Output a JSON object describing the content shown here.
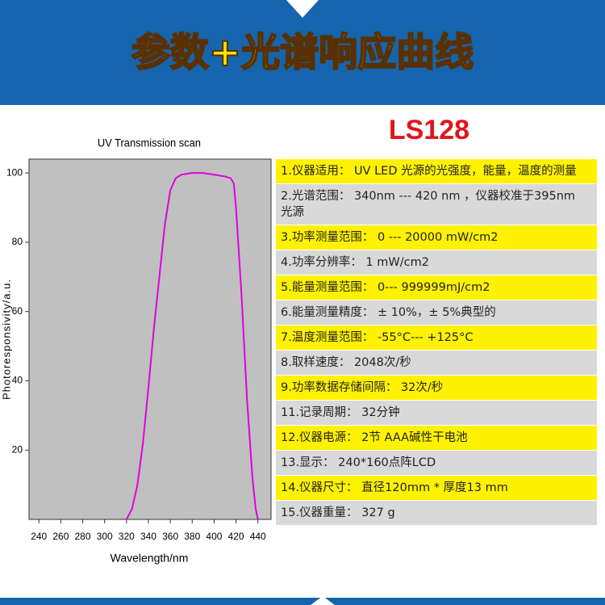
{
  "header": {
    "title": "参数+光谱响应曲线"
  },
  "model": "LS128",
  "chart_data": {
    "type": "line",
    "title": "UV Transmission scan",
    "x_label": "Wavelength/nm",
    "y_label": "Photoresponsivity/a.u.",
    "x": [
      320,
      325,
      330,
      335,
      340,
      345,
      350,
      355,
      360,
      365,
      370,
      380,
      390,
      400,
      410,
      415,
      418,
      420,
      425,
      430,
      435,
      438,
      440
    ],
    "series": [
      {
        "color": "#e000e0",
        "values": [
          0,
          3,
          10,
          22,
          38,
          55,
          70,
          85,
          95,
          98.5,
          99.5,
          100,
          100,
          99.5,
          99,
          98.5,
          97,
          90,
          65,
          35,
          12,
          3,
          0
        ]
      }
    ],
    "xlim": [
      231,
      452
    ],
    "ylim": [
      0,
      104
    ],
    "xticks": [
      240,
      260,
      280,
      300,
      320,
      340,
      360,
      380,
      400,
      420,
      440
    ],
    "yticks": [
      20,
      40,
      60,
      80,
      100
    ],
    "background": "#c0c0c0"
  },
  "specs": [
    "1.仪器适用： UV LED 光源的光强度，能量，温度的测量",
    "2.光谱范围： 340nm --- 420 nm ，仪器校准于395nm光源",
    "3.功率测量范围： 0 --- 20000 mW/cm2",
    "4.功率分辨率： 1 mW/cm2",
    "5.能量测量范围： 0--- 999999mJ/cm2",
    "6.能量测量精度： ± 10%，± 5%典型的",
    "7.温度测量范围： -55°C--- +125°C",
    "8.取样速度： 2048次/秒",
    "9.功率数据存储间隔： 32次/秒",
    "11.记录周期： 32分钟",
    "12.仪器电源： 2节 AAA碱性干电池",
    "13.显示： 240*160点阵LCD",
    "14.仪器尺寸： 直径120mm * 厚度13 mm",
    "15.仪器重量： 327 g"
  ]
}
